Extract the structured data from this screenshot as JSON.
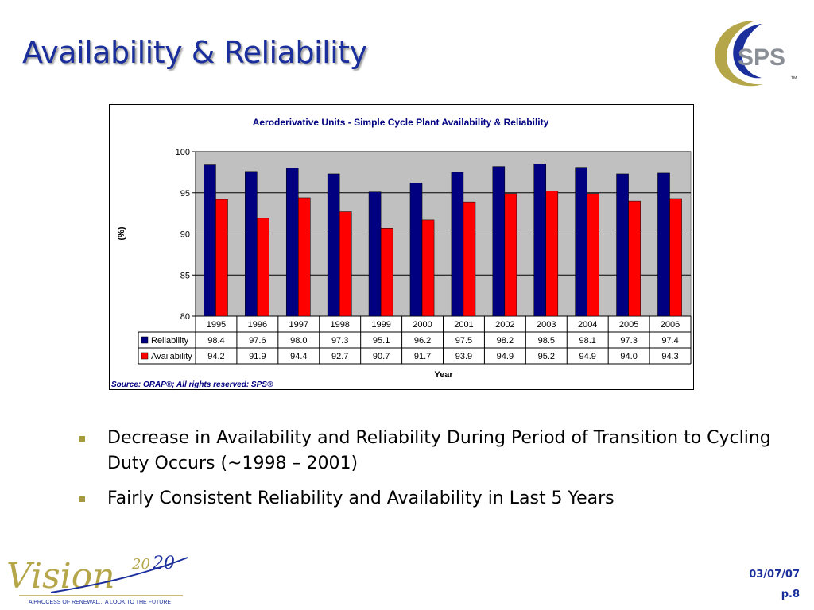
{
  "slide": {
    "title": "Availability & Reliability",
    "bullets": [
      "Decrease in Availability and Reliability During Period of Transition to Cycling Duty Occurs (~1998 – 2001)",
      "Fairly Consistent Reliability and Availability in Last 5 Years"
    ],
    "footer_date": "03/07/07",
    "footer_page": "p.8"
  },
  "logos": {
    "sps_text": "SPS",
    "sps_tm": "™",
    "vision_text": "Vision",
    "vision_year_a": "20",
    "vision_year_b": "20",
    "vision_tagline": "A PROCESS OF RENEWAL... A LOOK TO THE FUTURE"
  },
  "chart_data": {
    "type": "bar",
    "title": "Aeroderivative Units - Simple Cycle Plant Availability & Reliability",
    "xlabel": "Year",
    "ylabel": "(%)",
    "ylim": [
      80,
      100
    ],
    "yticks": [
      80,
      85,
      90,
      95,
      100
    ],
    "grid": true,
    "legend": "data-table-left",
    "source": "Source: ORAP®; All rights reserved: SPS®",
    "categories": [
      "1995",
      "1996",
      "1997",
      "1998",
      "1999",
      "2000",
      "2001",
      "2002",
      "2003",
      "2004",
      "2005",
      "2006"
    ],
    "series": [
      {
        "name": "Reliability",
        "color": "#000080",
        "values": [
          98.4,
          97.6,
          98.0,
          97.3,
          95.1,
          96.2,
          97.5,
          98.2,
          98.5,
          98.1,
          97.3,
          97.4
        ]
      },
      {
        "name": "Availability",
        "color": "#ff0000",
        "values": [
          94.2,
          91.9,
          94.4,
          92.7,
          90.7,
          91.7,
          93.9,
          94.9,
          95.2,
          94.9,
          94.0,
          94.3
        ]
      }
    ],
    "plot_bg": "#c0c0c0"
  }
}
